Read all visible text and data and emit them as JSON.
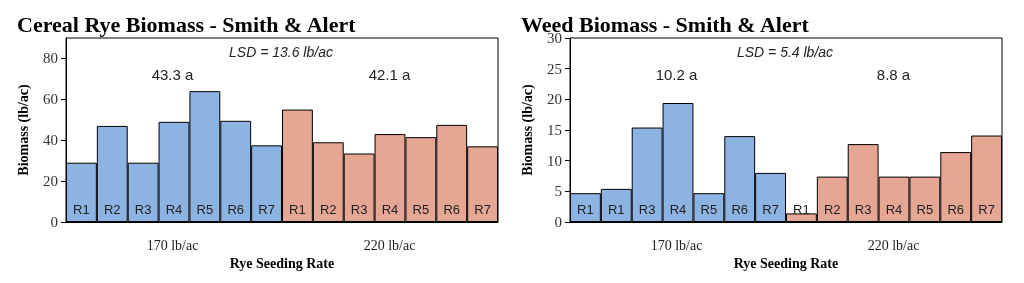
{
  "chart_data": [
    {
      "type": "bar",
      "title": "Cereal Rye Biomass - Smith & Alert",
      "xlabel": "Rye Seeding Rate",
      "ylabel": "Biomass (lb/ac)",
      "categories": [
        "R1",
        "R2",
        "R3",
        "R4",
        "R5",
        "R6",
        "R7",
        "R1",
        "R2",
        "R3",
        "R4",
        "R5",
        "R6",
        "R7"
      ],
      "values": [
        29,
        47,
        29,
        49,
        64,
        49.5,
        37.5,
        55,
        39,
        33.5,
        43,
        41.5,
        47.5,
        37
      ],
      "colors": [
        "#8db3e2",
        "#8db3e2",
        "#8db3e2",
        "#8db3e2",
        "#8db3e2",
        "#8db3e2",
        "#8db3e2",
        "#e6a694",
        "#e6a694",
        "#e6a694",
        "#e6a694",
        "#e6a694",
        "#e6a694",
        "#e6a694"
      ],
      "ylim": [
        0,
        90
      ],
      "yticks": [
        0,
        20,
        40,
        60,
        80
      ],
      "grid": false,
      "annotations": [
        "LSD = 13.6 lb/ac",
        "43.3 a",
        "42.1 a",
        "170 lb/ac",
        "220 lb/ac"
      ]
    },
    {
      "type": "bar",
      "title": "Weed Biomass - Smith & Alert",
      "xlabel": "Rye Seeding Rate",
      "ylabel": "Biomass (lb/ac)",
      "categories": [
        "R1",
        "R1",
        "R3",
        "R4",
        "R5",
        "R6",
        "R7",
        "R1",
        "R2",
        "R3",
        "R4",
        "R5",
        "R6",
        "R7"
      ],
      "values": [
        4.7,
        5.4,
        15.4,
        19.4,
        4.7,
        14,
        8,
        1.4,
        7.4,
        12.7,
        7.4,
        7.4,
        11.4,
        14.1
      ],
      "colors": [
        "#8db3e2",
        "#8db3e2",
        "#8db3e2",
        "#8db3e2",
        "#8db3e2",
        "#8db3e2",
        "#8db3e2",
        "#e6a694",
        "#e6a694",
        "#e6a694",
        "#e6a694",
        "#e6a694",
        "#e6a694",
        "#e6a694"
      ],
      "ylim": [
        0,
        30
      ],
      "yticks": [
        0,
        5,
        10,
        15,
        20,
        25,
        30
      ],
      "grid": false,
      "annotations": [
        "LSD = 5.4 lb/ac",
        "10.2 a",
        "8.8 a",
        "170 lb/ac",
        "220 lb/ac"
      ]
    }
  ]
}
